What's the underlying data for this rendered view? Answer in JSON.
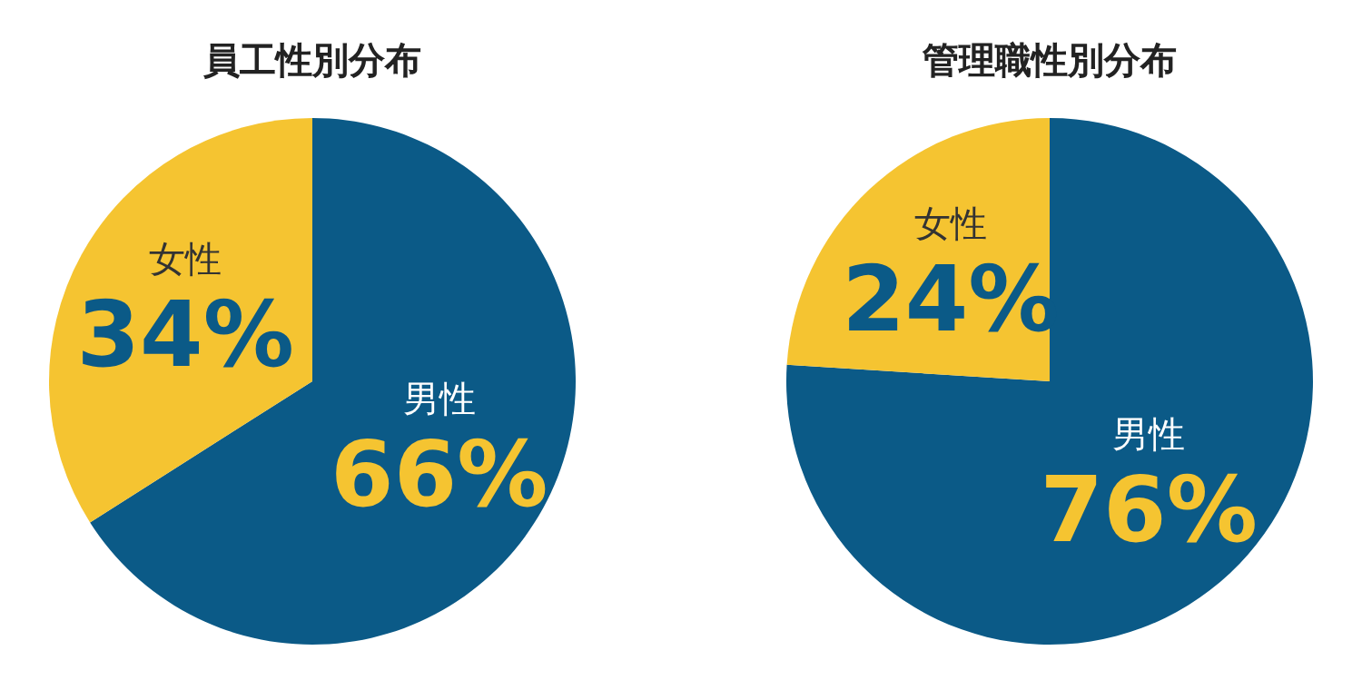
{
  "chart_data": [
    {
      "type": "pie",
      "title": "員工性別分布",
      "categories": [
        "男性",
        "女性"
      ],
      "values": [
        66,
        34
      ],
      "value_labels": [
        "66%",
        "34%"
      ],
      "colors": [
        "#0b5a87",
        "#f5c431"
      ]
    },
    {
      "type": "pie",
      "title": "管理職性別分布",
      "categories": [
        "男性",
        "女性"
      ],
      "values": [
        76,
        24
      ],
      "value_labels": [
        "76%",
        "24%"
      ],
      "colors": [
        "#0b5a87",
        "#f5c431"
      ]
    }
  ]
}
